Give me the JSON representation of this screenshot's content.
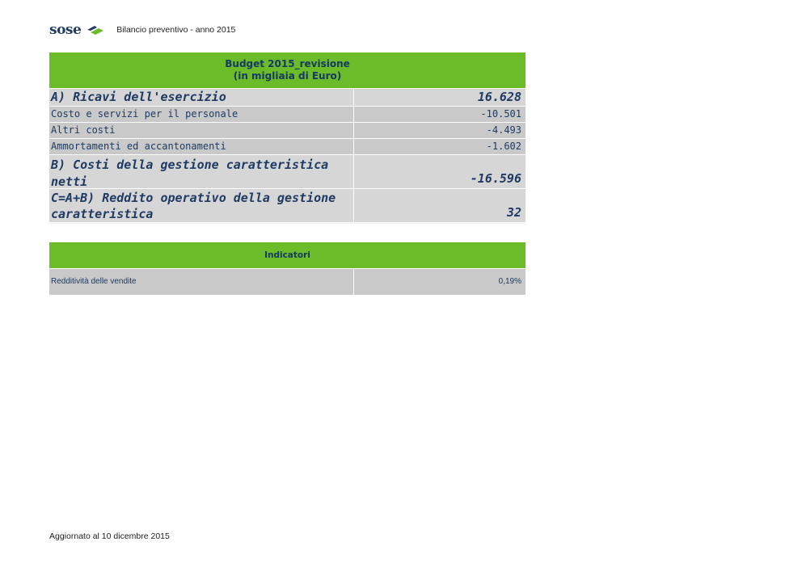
{
  "header": {
    "logo": "sose",
    "title": "Bilancio preventivo - anno 2015"
  },
  "table": {
    "heading_line1": "Budget 2015_revisione",
    "heading_line2": "(in migliaia di Euro)",
    "rows": [
      {
        "label": "A) Ricavi dell'esercizio",
        "value": "16.628"
      },
      {
        "label": "Costo e servizi per il personale",
        "value": "-10.501"
      },
      {
        "label": "Altri costi",
        "value": "-4.493"
      },
      {
        "label": "Ammortamenti ed accantonamenti",
        "value": "-1.602"
      },
      {
        "label": "B) Costi della gestione caratteristica netti",
        "value": "-16.596"
      },
      {
        "label_line1": "C=A+B) Reddito operativo della gestione",
        "label_line2": "caratteristica",
        "value": "32"
      }
    ],
    "indicators_heading": "Indicatori",
    "indicators": [
      {
        "label": "Redditività delle vendite",
        "value": "0,19%"
      }
    ]
  },
  "footer": {
    "text": "Aggiornato al 10 dicembre 2015"
  },
  "colors": {
    "green": "#6cbb28",
    "navy": "#1f3a63",
    "gray_light": "#d6d6d6",
    "gray_mid": "#c9c9c9"
  }
}
